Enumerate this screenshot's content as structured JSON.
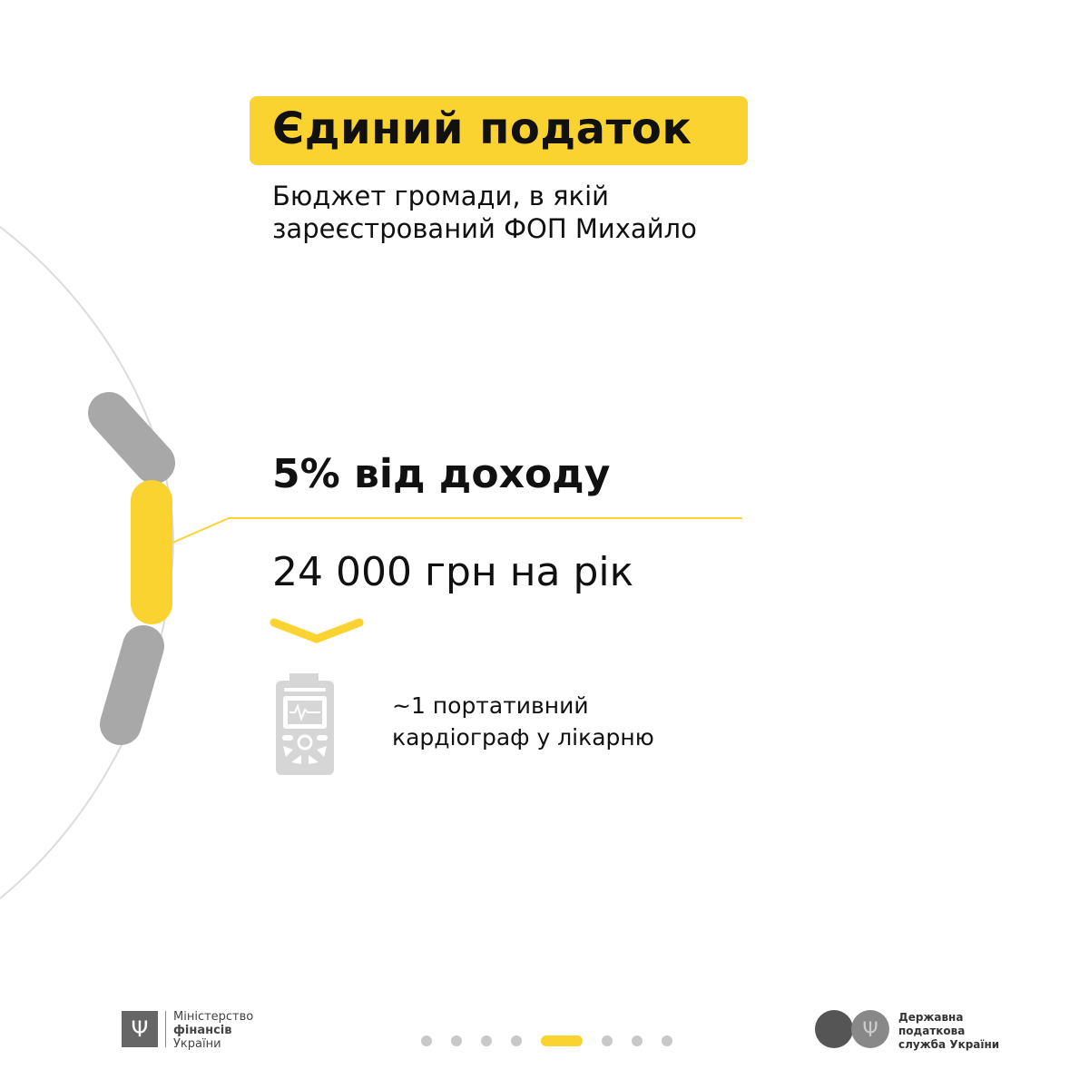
{
  "title": "Єдиний податок",
  "subtitle_line1": "Бюджет громади, в якій",
  "subtitle_line2": "зареєстрований ФОП Михайло",
  "rate": "5% від доходу",
  "amount": "24 000 грн на рік",
  "equivalent_line1": "~1 портативний",
  "equivalent_line2": "кардіограф у лікарню",
  "equivalent_icon": "portable-cardiograph-icon",
  "footer": {
    "ministry": [
      "Міністерство",
      "фінансів",
      "України"
    ],
    "tax_service": [
      "Державна",
      "податкова",
      "служба України"
    ]
  },
  "pagination": {
    "total": 8,
    "active": 5
  },
  "colors": {
    "accent": "#fbd330",
    "gray": "#a8a8a8"
  }
}
